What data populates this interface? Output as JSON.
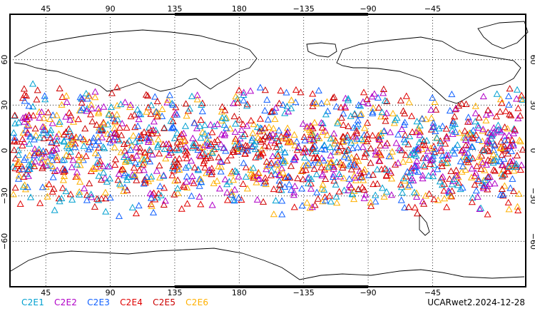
{
  "map": {
    "top_lon_labels": [
      "45",
      "90",
      "135",
      "180",
      "−135",
      "−90",
      "−45"
    ],
    "bottom_lon_labels": [
      "45",
      "90",
      "135",
      "180",
      "−135",
      "−90",
      "−45"
    ],
    "left_lat_labels": [
      "60",
      "30",
      "0",
      "−30",
      "−60"
    ],
    "right_lat_labels": [
      "60",
      "30",
      "0",
      "−30",
      "−60"
    ],
    "grid": "dotted",
    "point_latitude_range": [
      -45,
      45
    ],
    "marker": "open-triangle"
  },
  "legend": {
    "items": [
      {
        "label": "C2E1",
        "color": "#00a0d0"
      },
      {
        "label": "C2E2",
        "color": "#b000c8"
      },
      {
        "label": "C2E3",
        "color": "#1060ff"
      },
      {
        "label": "C2E4",
        "color": "#e00000"
      },
      {
        "label": "C2E5",
        "color": "#cc0000"
      },
      {
        "label": "C2E6",
        "color": "#ffb000"
      }
    ]
  },
  "product_label": "UCARwet2.2024-12-28"
}
